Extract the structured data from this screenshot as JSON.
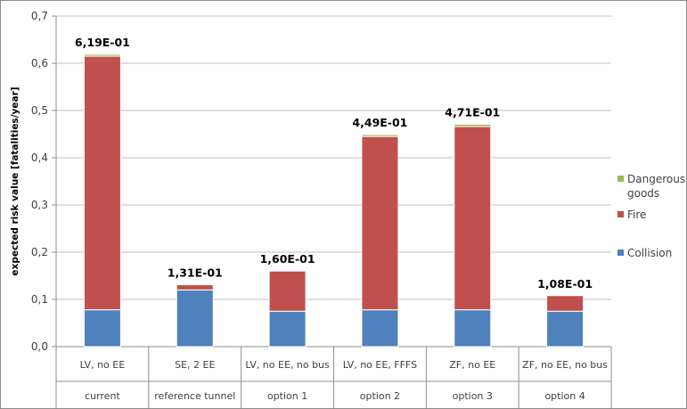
{
  "chart_data": {
    "type": "bar",
    "stacked": true,
    "title": "",
    "xlabel": "",
    "ylabel": "expected risk value [fatalities/year]",
    "ylim": [
      0,
      0.7
    ],
    "yticks": [
      "0,0",
      "0,1",
      "0,2",
      "0,3",
      "0,4",
      "0,5",
      "0,6",
      "0,7"
    ],
    "grid": true,
    "legend_position": "right",
    "categories": [
      {
        "label": "LV, no EE",
        "group": "current"
      },
      {
        "label": "SE, 2 EE",
        "group": "reference tunnel"
      },
      {
        "label": "LV, no EE, no bus",
        "group": "option 1"
      },
      {
        "label": "LV, no EE, FFFS",
        "group": "option 2"
      },
      {
        "label": "ZF, no EE",
        "group": "option 3"
      },
      {
        "label": "ZF, no EE, no bus",
        "group": "option 4"
      }
    ],
    "series": [
      {
        "name": "Collision",
        "color": "#4f81bd",
        "values": [
          0.078,
          0.12,
          0.075,
          0.078,
          0.078,
          0.075
        ]
      },
      {
        "name": "Fire",
        "color": "#c0504d",
        "values": [
          0.537,
          0.011,
          0.085,
          0.367,
          0.388,
          0.033
        ]
      },
      {
        "name": "Dangerous goods",
        "color": "#9bbb59",
        "values": [
          0.004,
          0.0,
          0.0,
          0.004,
          0.005,
          0.0
        ]
      }
    ],
    "legend_order": [
      "Dangerous goods",
      "Fire",
      "Collision"
    ],
    "legend_lines": {
      "Dangerous goods": [
        "Dangerous",
        "goods"
      ],
      "Fire": [
        "Fire"
      ],
      "Collision": [
        "Collision"
      ]
    },
    "totals_labels": [
      "6,19E-01",
      "1,31E-01",
      "1,60E-01",
      "4,49E-01",
      "4,71E-01",
      "1,08E-01"
    ]
  }
}
